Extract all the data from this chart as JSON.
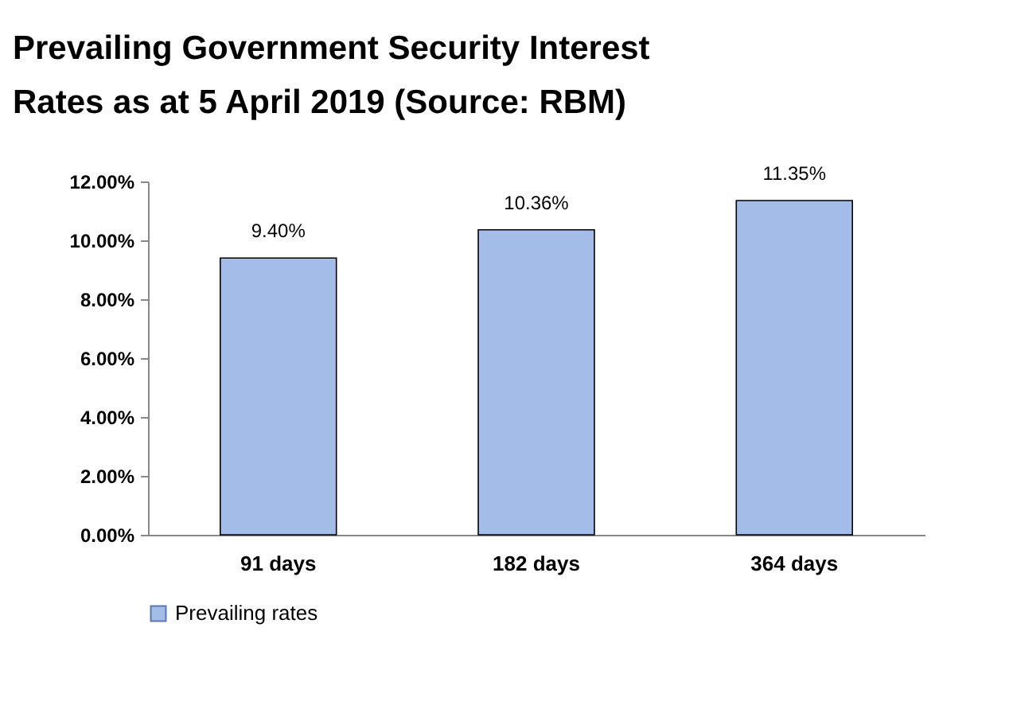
{
  "chart_data": {
    "type": "bar",
    "title": "Prevailing Government Security Interest Rates as at 5 April 2019 (Source: RBM)",
    "categories": [
      "91 days",
      "182 days",
      "364 days"
    ],
    "series": [
      {
        "name": "Prevailing rates",
        "color": "#a4bde8",
        "values": [
          9.4,
          10.36,
          11.35
        ]
      }
    ],
    "value_labels": [
      "9.40%",
      "10.36%",
      "11.35%"
    ],
    "ylim": [
      0,
      12
    ],
    "yticks": [
      {
        "value": 0,
        "label": "0.00%"
      },
      {
        "value": 2,
        "label": "2.00%"
      },
      {
        "value": 4,
        "label": "4.00%"
      },
      {
        "value": 6,
        "label": "6.00%"
      },
      {
        "value": 8,
        "label": "8.00%"
      },
      {
        "value": 10,
        "label": "10.00%"
      },
      {
        "value": 12,
        "label": "12.00%"
      }
    ],
    "grid": false,
    "legend": "bottom"
  }
}
